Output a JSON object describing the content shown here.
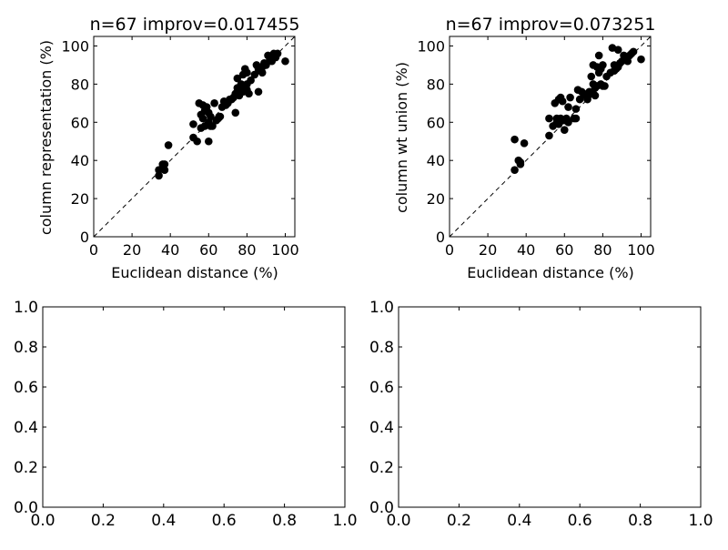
{
  "chart_data": [
    {
      "type": "scatter",
      "title": "n=67 improv=0.017455",
      "xlabel": "Euclidean distance (%)",
      "ylabel": "column representation (%)",
      "xlim": [
        0,
        105
      ],
      "ylim": [
        0,
        105
      ],
      "xticks": [
        "0",
        "20",
        "40",
        "60",
        "80",
        "100"
      ],
      "yticks": [
        "0",
        "20",
        "40",
        "60",
        "80",
        "100"
      ],
      "diagonal": true,
      "marker_color": "#000000",
      "points": [
        [
          34,
          32
        ],
        [
          34,
          35
        ],
        [
          36,
          38
        ],
        [
          37,
          35
        ],
        [
          37,
          38
        ],
        [
          39,
          48
        ],
        [
          52,
          59
        ],
        [
          52,
          52
        ],
        [
          54,
          50
        ],
        [
          55,
          70
        ],
        [
          56,
          57
        ],
        [
          56,
          64
        ],
        [
          57,
          69
        ],
        [
          57,
          62
        ],
        [
          58,
          58
        ],
        [
          58,
          66
        ],
        [
          59,
          68
        ],
        [
          60,
          65
        ],
        [
          60,
          60
        ],
        [
          60,
          50
        ],
        [
          61,
          58
        ],
        [
          61,
          63
        ],
        [
          62,
          58
        ],
        [
          63,
          70
        ],
        [
          64,
          61
        ],
        [
          65,
          62
        ],
        [
          66,
          63
        ],
        [
          67,
          68
        ],
        [
          68,
          71
        ],
        [
          69,
          69
        ],
        [
          70,
          70
        ],
        [
          71,
          72
        ],
        [
          72,
          72
        ],
        [
          73,
          73
        ],
        [
          74,
          75
        ],
        [
          74,
          65
        ],
        [
          75,
          76
        ],
        [
          75,
          78
        ],
        [
          75,
          83
        ],
        [
          76,
          74
        ],
        [
          76,
          77
        ],
        [
          77,
          80
        ],
        [
          78,
          85
        ],
        [
          78,
          76
        ],
        [
          79,
          79
        ],
        [
          79,
          88
        ],
        [
          80,
          77
        ],
        [
          80,
          80
        ],
        [
          81,
          75
        ],
        [
          82,
          82
        ],
        [
          84,
          85
        ],
        [
          85,
          90
        ],
        [
          86,
          88
        ],
        [
          86,
          76
        ],
        [
          87,
          87
        ],
        [
          88,
          89
        ],
        [
          88,
          86
        ],
        [
          89,
          91
        ],
        [
          90,
          90
        ],
        [
          91,
          95
        ],
        [
          92,
          93
        ],
        [
          93,
          92
        ],
        [
          94,
          96
        ],
        [
          95,
          94
        ],
        [
          96,
          96
        ],
        [
          100,
          92
        ],
        [
          80,
          86
        ]
      ]
    },
    {
      "type": "scatter",
      "title": "n=67 improv=0.073251",
      "xlabel": "Euclidean distance (%)",
      "ylabel": "column wt union (%)",
      "xlim": [
        0,
        105
      ],
      "ylim": [
        0,
        105
      ],
      "xticks": [
        "0",
        "20",
        "40",
        "60",
        "80",
        "100"
      ],
      "yticks": [
        "0",
        "20",
        "40",
        "60",
        "80",
        "100"
      ],
      "diagonal": true,
      "marker_color": "#000000",
      "points": [
        [
          34,
          51
        ],
        [
          34,
          35
        ],
        [
          36,
          40
        ],
        [
          37,
          38
        ],
        [
          37,
          39
        ],
        [
          39,
          49
        ],
        [
          52,
          62
        ],
        [
          52,
          53
        ],
        [
          54,
          58
        ],
        [
          55,
          70
        ],
        [
          56,
          60
        ],
        [
          56,
          62
        ],
        [
          57,
          72
        ],
        [
          57,
          59
        ],
        [
          58,
          73
        ],
        [
          58,
          62
        ],
        [
          59,
          71
        ],
        [
          60,
          56
        ],
        [
          60,
          61
        ],
        [
          61,
          62
        ],
        [
          62,
          60
        ],
        [
          62,
          68
        ],
        [
          63,
          73
        ],
        [
          65,
          62
        ],
        [
          66,
          67
        ],
        [
          67,
          77
        ],
        [
          68,
          72
        ],
        [
          69,
          76
        ],
        [
          70,
          75
        ],
        [
          71,
          74
        ],
        [
          72,
          73
        ],
        [
          73,
          76
        ],
        [
          74,
          75
        ],
        [
          74,
          84
        ],
        [
          75,
          80
        ],
        [
          75,
          90
        ],
        [
          76,
          74
        ],
        [
          76,
          78
        ],
        [
          77,
          79
        ],
        [
          77,
          89
        ],
        [
          78,
          95
        ],
        [
          78,
          86
        ],
        [
          79,
          80
        ],
        [
          79,
          88
        ],
        [
          80,
          79
        ],
        [
          80,
          90
        ],
        [
          81,
          79
        ],
        [
          82,
          84
        ],
        [
          84,
          86
        ],
        [
          85,
          99
        ],
        [
          86,
          90
        ],
        [
          86,
          87
        ],
        [
          87,
          88
        ],
        [
          88,
          98
        ],
        [
          88,
          89
        ],
        [
          89,
          91
        ],
        [
          90,
          92
        ],
        [
          91,
          95
        ],
        [
          92,
          93
        ],
        [
          93,
          92
        ],
        [
          94,
          95
        ],
        [
          95,
          96
        ],
        [
          96,
          97
        ],
        [
          100,
          93
        ],
        [
          72,
          72
        ],
        [
          75,
          75
        ],
        [
          66,
          62
        ]
      ]
    },
    {
      "type": "scatter",
      "title": "",
      "xlabel": "",
      "ylabel": "",
      "xlim": [
        0,
        1
      ],
      "ylim": [
        0,
        1
      ],
      "xticks": [
        "0.0",
        "0.2",
        "0.4",
        "0.6",
        "0.8",
        "1.0"
      ],
      "yticks": [
        "0.0",
        "0.2",
        "0.4",
        "0.6",
        "0.8",
        "1.0"
      ],
      "diagonal": false,
      "points": []
    },
    {
      "type": "scatter",
      "title": "",
      "xlabel": "",
      "ylabel": "",
      "xlim": [
        0,
        1
      ],
      "ylim": [
        0,
        1
      ],
      "xticks": [
        "0.0",
        "0.2",
        "0.4",
        "0.6",
        "0.8",
        "1.0"
      ],
      "yticks": [
        "0.0",
        "0.2",
        "0.4",
        "0.6",
        "0.8",
        "1.0"
      ],
      "diagonal": false,
      "points": []
    }
  ]
}
